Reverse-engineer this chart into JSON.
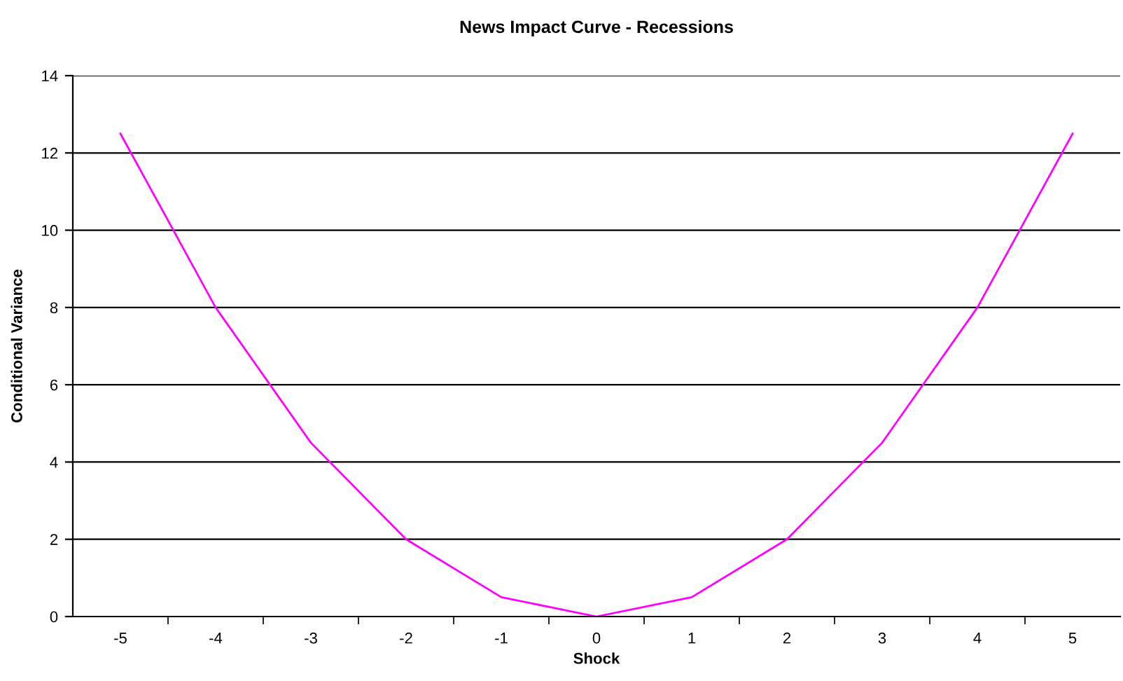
{
  "chart_data": {
    "type": "line",
    "title": "News Impact Curve - Recessions",
    "xlabel": "Shock",
    "ylabel": "Conditional Variance",
    "categories": [
      "-5",
      "-4",
      "-3",
      "-2",
      "-1",
      "0",
      "1",
      "2",
      "3",
      "4",
      "5"
    ],
    "series": [
      {
        "color": "#ff00ff",
        "values": [
          12.5,
          8,
          4.5,
          2,
          0.5,
          0,
          0.5,
          2,
          4.5,
          8,
          12.5
        ]
      }
    ],
    "ylim": [
      0,
      14
    ],
    "yticks": [
      0,
      2,
      4,
      6,
      8,
      10,
      12,
      14
    ],
    "grid": "y",
    "marker": "none",
    "line_style": "solid",
    "legend": false
  }
}
